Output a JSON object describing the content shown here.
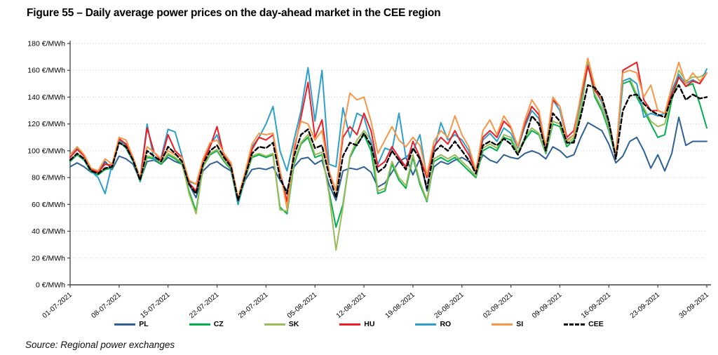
{
  "title": "Figure 55 – Daily average power prices on the day-ahead market in the CEE region",
  "source": "Source: Regional power exchanges",
  "chart_data": {
    "type": "line",
    "title": "Daily average power prices on the day-ahead market in the CEE region",
    "xlabel": "",
    "ylabel": "€/MWh",
    "unit": "€/MWh",
    "ylim": [
      0,
      180
    ],
    "y_tick_step": 20,
    "y_tick_label_suffix": " €/MWh",
    "grid": true,
    "legend_position": "bottom",
    "axis_color": "#404040",
    "grid_color": "#d9d9d9",
    "x_start": "01-07-2021",
    "x_end": "30-09-2021",
    "n_points": 92,
    "x_tick_labels": [
      "01-07-2021",
      "08-07-2021",
      "15-07-2021",
      "22-07-2021",
      "29-07-2021",
      "05-08-2021",
      "12-08-2021",
      "19-08-2021",
      "26-08-2021",
      "02-09-2021",
      "09-09-2021",
      "16-09-2021",
      "23-09-2021",
      "30-09-2021"
    ],
    "x_tick_indices": [
      0,
      7,
      14,
      21,
      28,
      35,
      42,
      49,
      56,
      63,
      70,
      77,
      84,
      91
    ],
    "series": [
      {
        "name": "PL",
        "color": "#2e6095",
        "dash": null,
        "values": [
          88,
          91,
          88,
          84,
          83,
          92,
          86,
          96,
          94,
          90,
          78,
          92,
          93,
          90,
          95,
          92,
          90,
          75,
          65,
          85,
          90,
          92,
          88,
          85,
          62,
          78,
          86,
          87,
          86,
          88,
          78,
          70,
          88,
          94,
          95,
          90,
          93,
          75,
          63,
          85,
          87,
          86,
          88,
          84,
          73,
          76,
          84,
          92,
          95,
          82,
          94,
          70,
          88,
          92,
          90,
          93,
          95,
          92,
          85,
          97,
          93,
          91,
          97,
          95,
          94,
          98,
          100,
          98,
          94,
          103,
          100,
          95,
          97,
          110,
          121,
          118,
          115,
          105,
          91,
          96,
          107,
          110,
          100,
          87,
          97,
          85,
          98,
          125,
          104,
          107,
          107,
          107
        ]
      },
      {
        "name": "CZ",
        "color": "#00b050",
        "dash": null,
        "values": [
          92,
          97,
          93,
          84,
          82,
          86,
          87,
          107,
          102,
          92,
          77,
          95,
          94,
          90,
          97,
          94,
          90,
          70,
          55,
          88,
          97,
          100,
          92,
          86,
          60,
          79,
          95,
          97,
          95,
          97,
          58,
          53,
          90,
          105,
          110,
          95,
          97,
          70,
          43,
          60,
          95,
          105,
          112,
          100,
          68,
          70,
          90,
          78,
          72,
          95,
          75,
          62,
          92,
          95,
          92,
          95,
          90,
          85,
          80,
          100,
          103,
          100,
          110,
          108,
          98,
          108,
          115,
          112,
          98,
          120,
          118,
          103,
          108,
          130,
          165,
          140,
          130,
          115,
          95,
          150,
          152,
          140,
          130,
          120,
          110,
          112,
          138,
          155,
          148,
          150,
          135,
          117
        ]
      },
      {
        "name": "SK",
        "color": "#9bbb59",
        "dash": null,
        "values": [
          93,
          98,
          94,
          85,
          83,
          87,
          88,
          108,
          103,
          93,
          78,
          96,
          95,
          91,
          98,
          95,
          91,
          68,
          53,
          88,
          98,
          101,
          93,
          87,
          61,
          80,
          96,
          98,
          96,
          98,
          56,
          55,
          92,
          106,
          112,
          97,
          99,
          68,
          26,
          58,
          96,
          108,
          115,
          108,
          70,
          72,
          92,
          80,
          74,
          97,
          77,
          63,
          94,
          97,
          94,
          97,
          92,
          87,
          81,
          102,
          105,
          102,
          112,
          110,
          99,
          110,
          117,
          113,
          99,
          122,
          120,
          105,
          110,
          132,
          166,
          142,
          132,
          117,
          96,
          152,
          154,
          142,
          132,
          122,
          118,
          120,
          140,
          160,
          152,
          155,
          155,
          158
        ]
      },
      {
        "name": "HU",
        "color": "#ee1c25",
        "dash": null,
        "values": [
          95,
          101,
          96,
          86,
          84,
          90,
          89,
          109,
          105,
          94,
          79,
          117,
          99,
          93,
          112,
          100,
          95,
          76,
          70,
          92,
          103,
          118,
          96,
          89,
          64,
          82,
          101,
          110,
          108,
          112,
          85,
          62,
          100,
          125,
          151,
          110,
          123,
          85,
          70,
          110,
          118,
          112,
          128,
          115,
          88,
          92,
          103,
          95,
          88,
          107,
          95,
          80,
          103,
          110,
          105,
          115,
          105,
          97,
          85,
          110,
          115,
          110,
          122,
          117,
          103,
          120,
          133,
          127,
          102,
          138,
          133,
          110,
          115,
          140,
          163,
          145,
          138,
          122,
          96,
          160,
          163,
          166,
          138,
          130,
          130,
          128,
          142,
          155,
          148,
          152,
          150,
          158
        ]
      },
      {
        "name": "RO",
        "color": "#2e9fc9",
        "dash": null,
        "values": [
          97,
          102,
          96,
          85,
          80,
          68,
          90,
          108,
          104,
          93,
          78,
          120,
          93,
          95,
          116,
          114,
          96,
          77,
          75,
          93,
          104,
          112,
          97,
          90,
          60,
          83,
          103,
          110,
          120,
          133,
          100,
          85,
          108,
          130,
          162,
          122,
          160,
          90,
          88,
          132,
          110,
          128,
          125,
          107,
          90,
          102,
          100,
          128,
          95,
          100,
          112,
          80,
          100,
          121,
          108,
          112,
          108,
          100,
          85,
          108,
          113,
          107,
          117,
          113,
          102,
          118,
          130,
          124,
          100,
          138,
          130,
          108,
          112,
          138,
          164,
          146,
          136,
          120,
          95,
          152,
          154,
          150,
          125,
          128,
          126,
          128,
          145,
          157,
          150,
          153,
          150,
          161
        ]
      },
      {
        "name": "SI",
        "color": "#f79646",
        "dash": null,
        "values": [
          97,
          103,
          97,
          87,
          85,
          94,
          90,
          110,
          108,
          95,
          80,
          103,
          99,
          94,
          100,
          97,
          95,
          78,
          75,
          94,
          106,
          108,
          98,
          91,
          65,
          84,
          105,
          113,
          112,
          113,
          85,
          57,
          103,
          122,
          120,
          108,
          115,
          85,
          70,
          115,
          143,
          138,
          140,
          122,
          98,
          108,
          118,
          108,
          103,
          110,
          104,
          82,
          107,
          115,
          110,
          126,
          112,
          103,
          85,
          115,
          123,
          112,
          126,
          118,
          103,
          123,
          138,
          130,
          103,
          140,
          133,
          107,
          112,
          142,
          169,
          148,
          138,
          122,
          97,
          158,
          160,
          158,
          140,
          149,
          130,
          128,
          148,
          166,
          150,
          158,
          152,
          158
        ]
      },
      {
        "name": "CEE",
        "color": "#000000",
        "dash": "6,3.5",
        "values": [
          93,
          98,
          94,
          85,
          83,
          87,
          88,
          106,
          103,
          93,
          78,
          100,
          96,
          92,
          103,
          98,
          92,
          75,
          68,
          90,
          100,
          104,
          95,
          88,
          63,
          81,
          98,
          103,
          102,
          106,
          80,
          68,
          96,
          112,
          116,
          102,
          104,
          82,
          65,
          96,
          106,
          104,
          113,
          104,
          84,
          88,
          100,
          93,
          86,
          102,
          94,
          72,
          99,
          104,
          100,
          107,
          100,
          93,
          83,
          104,
          107,
          104,
          109,
          105,
          97,
          109,
          126,
          120,
          100,
          128,
          122,
          106,
          106,
          126,
          149,
          147,
          140,
          122,
          94,
          130,
          141,
          142,
          135,
          130,
          127,
          125,
          140,
          149,
          138,
          142,
          139,
          140
        ]
      }
    ]
  }
}
